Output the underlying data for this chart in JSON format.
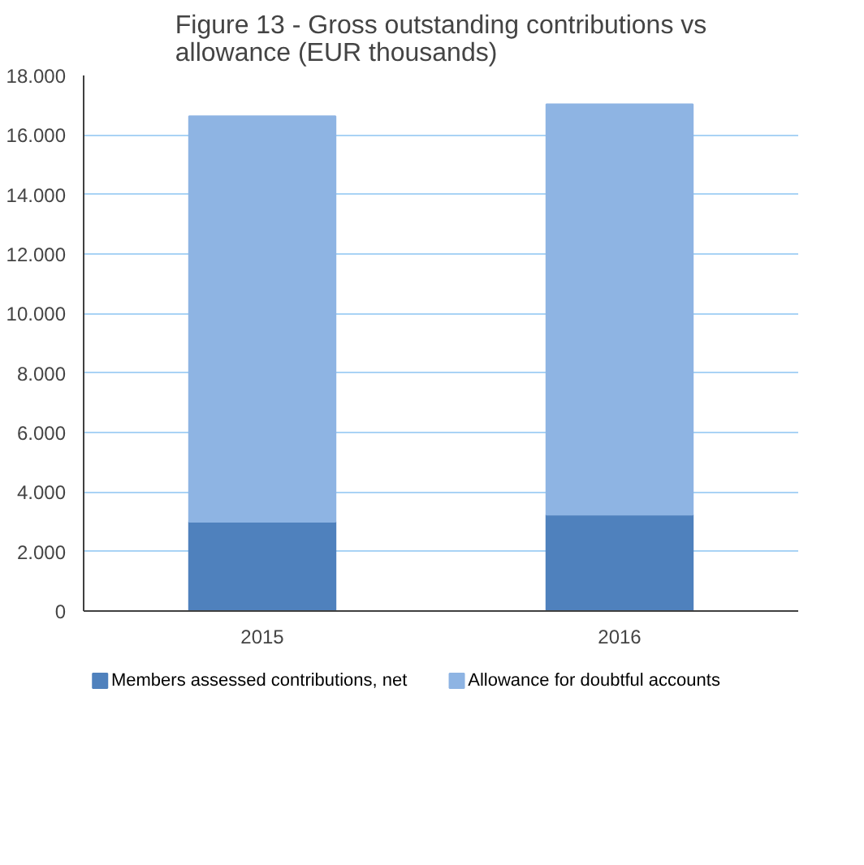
{
  "chart_data": {
    "type": "bar",
    "stacked": true,
    "title": "Figure 13 - Gross outstanding contributions vs\nallowance (EUR thousands)",
    "categories": [
      "2015",
      "2016"
    ],
    "series": [
      {
        "name": "Members assessed contributions, net",
        "color": "#4f81bd",
        "values": [
          3000,
          3240
        ]
      },
      {
        "name": "Allowance for doubtful accounts",
        "color": "#8eb4e3",
        "values": [
          13630,
          13790
        ]
      }
    ],
    "ylim": [
      0,
      18000
    ],
    "yticks": [
      {
        "value": 0,
        "label": "0"
      },
      {
        "value": 2000,
        "label": "2.000"
      },
      {
        "value": 4000,
        "label": "4.000"
      },
      {
        "value": 6000,
        "label": "6.000"
      },
      {
        "value": 8000,
        "label": "8.000"
      },
      {
        "value": 10000,
        "label": "10.000"
      },
      {
        "value": 12000,
        "label": "12.000"
      },
      {
        "value": 14000,
        "label": "14.000"
      },
      {
        "value": 16000,
        "label": "16.000"
      },
      {
        "value": 18000,
        "label": "18.000"
      }
    ],
    "grid": "y",
    "legend": "bottom"
  }
}
